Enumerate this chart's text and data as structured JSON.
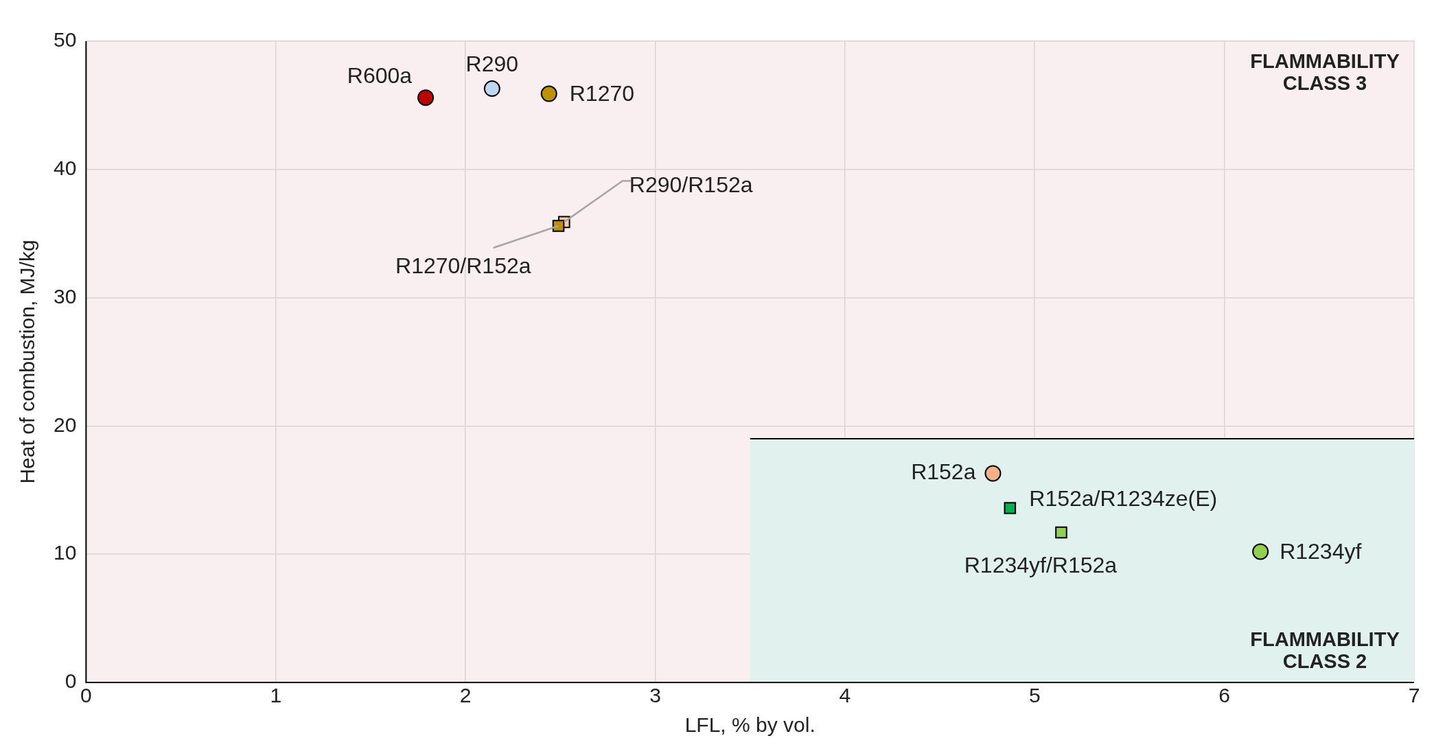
{
  "chart_data": {
    "type": "scatter",
    "xlabel": "LFL, % by vol.",
    "ylabel": "Heat of combustion, MJ/kg",
    "xlim": [
      0,
      7
    ],
    "xticks": [
      0,
      1,
      2,
      3,
      4,
      5,
      6,
      7
    ],
    "ylim": [
      0,
      50
    ],
    "yticks": [
      0,
      10,
      20,
      30,
      40,
      50
    ],
    "grid": true,
    "legend": false,
    "bands": [
      {
        "axis": "y",
        "from": 0,
        "to": 50,
        "color": "#f9eff0"
      }
    ],
    "annotations": [
      "FLAMMABILITY CLASS 3",
      "FLAMMABILITY CLASS 2"
    ],
    "series": [
      {
        "type": "area",
        "color": "#e1f1ee",
        "x": [
          3.5,
          7
        ],
        "values": [
          19,
          19
        ]
      },
      {
        "name": "R600a",
        "color": "#c00000",
        "marker": "circle",
        "x": [
          1.79
        ],
        "values": [
          45.6
        ]
      },
      {
        "name": "R290",
        "color": "#bdd7ee",
        "marker": "circle",
        "x": [
          2.14
        ],
        "values": [
          46.3
        ]
      },
      {
        "name": "R1270",
        "color": "#bf9000",
        "marker": "circle",
        "x": [
          2.44
        ],
        "values": [
          45.9
        ]
      },
      {
        "name": "R1270/R152a",
        "color": "#bf9000",
        "marker": "square",
        "x": [
          2.49
        ],
        "values": [
          35.6
        ]
      },
      {
        "name": "R290/R152a",
        "color": "#f8cbad",
        "marker": "square",
        "x": [
          2.52
        ],
        "values": [
          35.9
        ]
      },
      {
        "name": "R152a",
        "color": "#f4b183",
        "marker": "circle",
        "x": [
          4.78
        ],
        "values": [
          16.3
        ]
      },
      {
        "name": "R152a/R1234ze(E)",
        "color": "#00b050",
        "marker": "square",
        "x": [
          4.87
        ],
        "values": [
          13.6
        ]
      },
      {
        "name": "R1234yf/R152a",
        "color": "#92d050",
        "marker": "square",
        "x": [
          5.14
        ],
        "values": [
          11.7
        ]
      },
      {
        "name": "R1234yf",
        "color": "#92d050",
        "marker": "circle",
        "x": [
          6.19
        ],
        "values": [
          10.2
        ]
      }
    ]
  }
}
